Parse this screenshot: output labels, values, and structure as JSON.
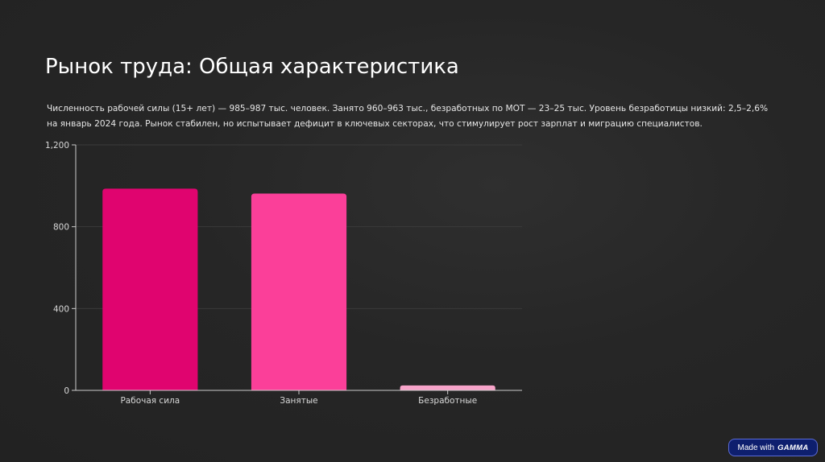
{
  "slide": {
    "title": "Рынок труда: Общая характеристика",
    "description": "Численность рабочей силы (15+ лет) — 985–987 тыс. человек. Занято 960–963 тыс., безработных по МОТ — 23–25 тыс. Уровень безработицы низкий: 2,5–2,6% на январь 2024 года. Рынок стабилен, но испытывает дефицит в ключевых секторах, что стимулирует рост зарплат и миграцию специалистов."
  },
  "chart_data": {
    "type": "bar",
    "title": "",
    "xlabel": "",
    "ylabel": "",
    "categories": [
      "Рабочая сила",
      "Занятые",
      "Безработные"
    ],
    "values": [
      986,
      962,
      24
    ],
    "ylim": [
      0,
      1200
    ],
    "yticks": [
      0,
      400,
      800,
      1200
    ],
    "ytick_labels": [
      "0",
      "400",
      "800",
      "1,200"
    ],
    "grid": true,
    "legend": "none",
    "bar_colors": [
      "#e0046f",
      "#fb3f99",
      "#f7a3c9"
    ]
  },
  "colors": {
    "background": "#262626",
    "text": "#f2f2f2",
    "gridline": "#3a3a3a",
    "axis": "#cccccc"
  },
  "badge": {
    "prefix": "Made with",
    "brand": "GAMMA"
  }
}
